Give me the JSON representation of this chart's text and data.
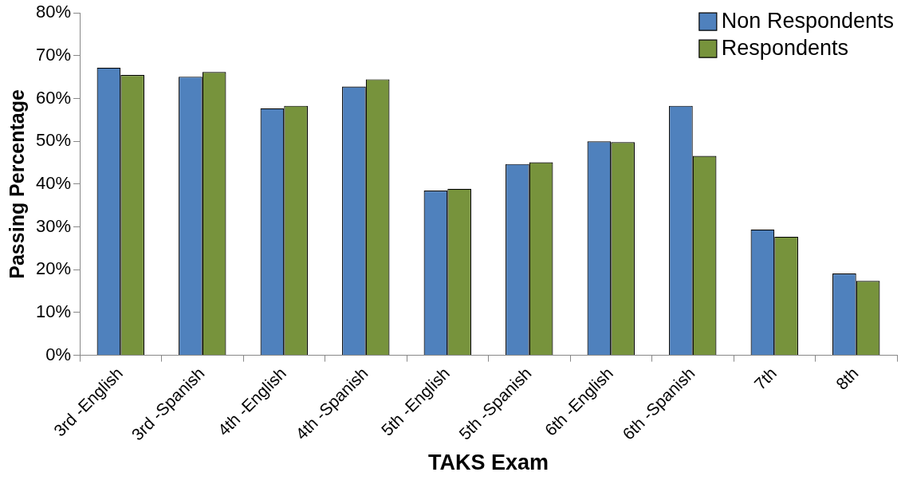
{
  "chart_data": {
    "type": "bar",
    "xlabel": "TAKS Exam",
    "ylabel": "Passing Percentage",
    "categories": [
      "3rd -English",
      "3rd -Spanish",
      "4th -English",
      "4th -Spanish",
      "5th -English",
      "5th -Spanish",
      "6th -English",
      "6th -Spanish",
      "7th",
      "8th"
    ],
    "series": [
      {
        "name": "Non Respondents",
        "color": "#4f81bd",
        "values": [
          67.2,
          65.1,
          57.7,
          62.8,
          38.5,
          44.7,
          50.0,
          58.3,
          29.4,
          19.1
        ]
      },
      {
        "name": "Respondents",
        "color": "#77933c",
        "values": [
          65.5,
          66.2,
          58.3,
          64.5,
          38.9,
          45.1,
          49.8,
          46.6,
          27.7,
          17.4
        ]
      }
    ],
    "ylim": [
      0,
      80
    ],
    "yticks": [
      {
        "value": 0,
        "label": "0%"
      },
      {
        "value": 10,
        "label": "10%"
      },
      {
        "value": 20,
        "label": "20%"
      },
      {
        "value": 30,
        "label": "30%"
      },
      {
        "value": 40,
        "label": "40%"
      },
      {
        "value": 50,
        "label": "50%"
      },
      {
        "value": 60,
        "label": "60%"
      },
      {
        "value": 70,
        "label": "70%"
      },
      {
        "value": 80,
        "label": "80%"
      }
    ],
    "grid": false,
    "legend": "top right"
  }
}
